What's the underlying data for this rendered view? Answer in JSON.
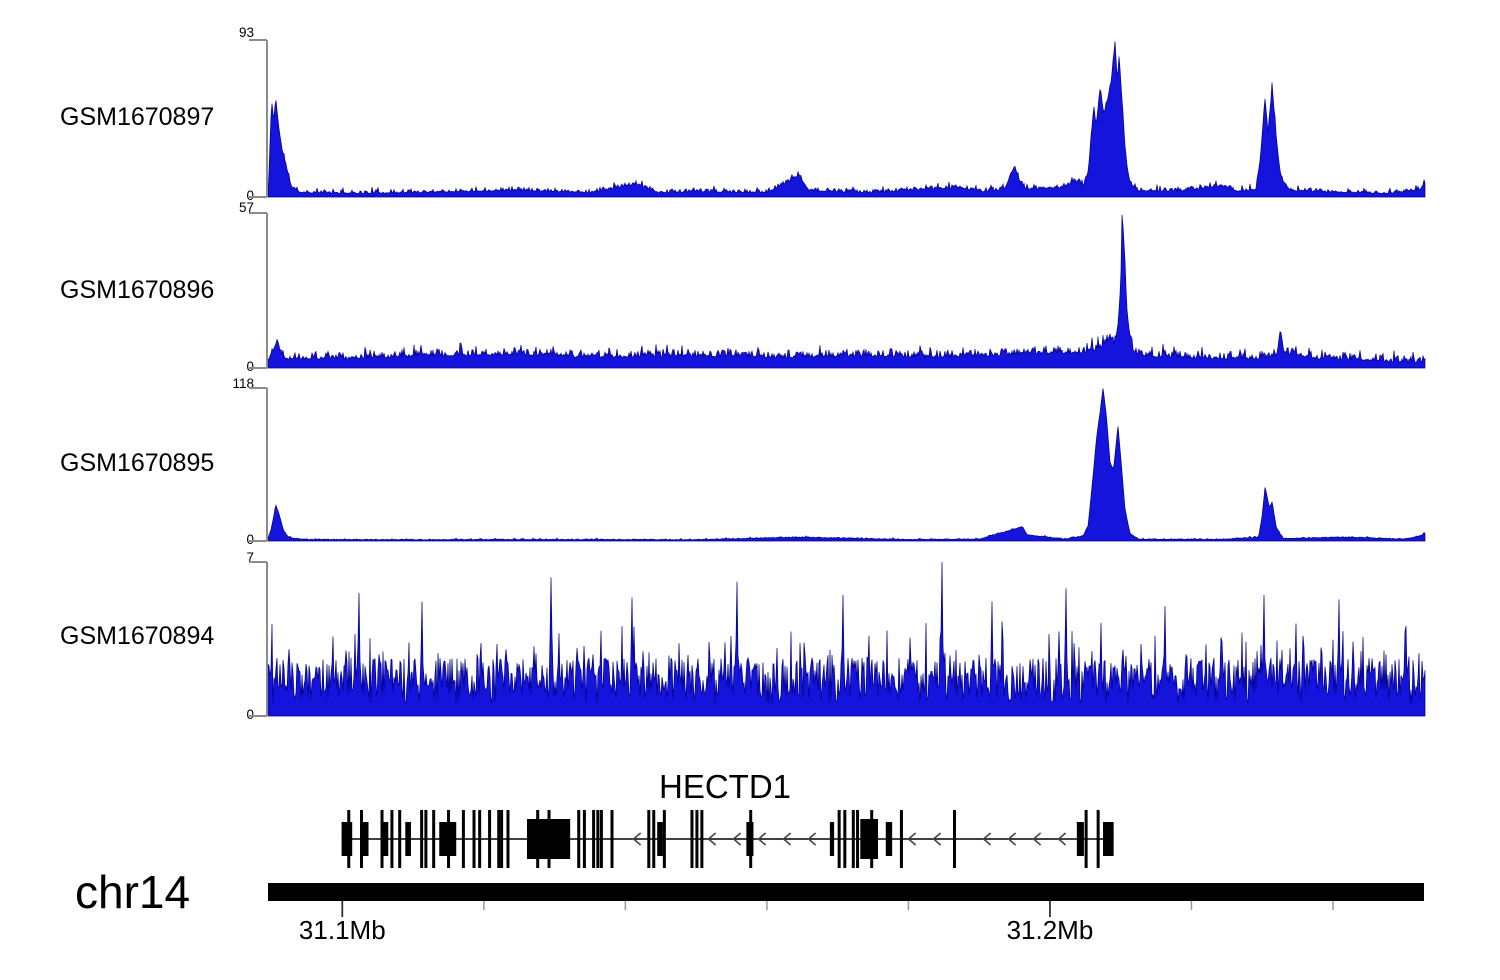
{
  "chart_data": {
    "type": "area",
    "description": "Genome browser coverage tracks over HECTD1 locus",
    "x_axis": {
      "units": "Mb",
      "start_mb": 31.0895,
      "end_mb": 31.253,
      "chromosome": "chr14",
      "ticks_major": [
        {
          "mb": 31.1,
          "label": "31.1Mb"
        },
        {
          "mb": 31.2,
          "label": "31.2Mb"
        }
      ],
      "ticks_minor_mb": [
        31.12,
        31.14,
        31.16,
        31.18,
        31.22,
        31.24
      ]
    },
    "tracks": [
      {
        "label": "GSM1670897",
        "ymax": 93,
        "ymax_label": "93",
        "yzero_label": "0",
        "noise_amp": 2.2,
        "seed": 11,
        "envelope": [
          [
            31.0895,
            2
          ],
          [
            31.0897,
            20
          ],
          [
            31.09,
            58
          ],
          [
            31.0903,
            45
          ],
          [
            31.0906,
            59
          ],
          [
            31.091,
            42
          ],
          [
            31.0914,
            30
          ],
          [
            31.0919,
            22
          ],
          [
            31.0924,
            12
          ],
          [
            31.0929,
            6
          ],
          [
            31.0941,
            3
          ],
          [
            31.1,
            2.5
          ],
          [
            31.11,
            3
          ],
          [
            31.125,
            4.5
          ],
          [
            31.135,
            3
          ],
          [
            31.1415,
            8
          ],
          [
            31.1445,
            3
          ],
          [
            31.15,
            3.5
          ],
          [
            31.16,
            3
          ],
          [
            31.1645,
            13
          ],
          [
            31.1652,
            9
          ],
          [
            31.166,
            4
          ],
          [
            31.175,
            3
          ],
          [
            31.18,
            4.5
          ],
          [
            31.1875,
            6
          ],
          [
            31.19,
            3.5
          ],
          [
            31.1936,
            5
          ],
          [
            31.195,
            19
          ],
          [
            31.1957,
            10
          ],
          [
            31.1966,
            5
          ],
          [
            31.2014,
            6
          ],
          [
            31.2039,
            10
          ],
          [
            31.2047,
            7
          ],
          [
            31.2054,
            15
          ],
          [
            31.2058,
            35
          ],
          [
            31.2062,
            55
          ],
          [
            31.2065,
            42
          ],
          [
            31.2071,
            64
          ],
          [
            31.2076,
            50
          ],
          [
            31.2082,
            58
          ],
          [
            31.2087,
            70
          ],
          [
            31.2092,
            93
          ],
          [
            31.2095,
            70
          ],
          [
            31.2098,
            82
          ],
          [
            31.2103,
            50
          ],
          [
            31.2107,
            25
          ],
          [
            31.2112,
            10
          ],
          [
            31.2122,
            4
          ],
          [
            31.2184,
            4
          ],
          [
            31.2243,
            7
          ],
          [
            31.2268,
            3.5
          ],
          [
            31.2291,
            5
          ],
          [
            31.2297,
            22
          ],
          [
            31.2304,
            59
          ],
          [
            31.2308,
            38
          ],
          [
            31.2314,
            66
          ],
          [
            31.232,
            35
          ],
          [
            31.2326,
            12
          ],
          [
            31.234,
            4
          ],
          [
            31.2424,
            3
          ],
          [
            31.248,
            2.5
          ],
          [
            31.2523,
            5
          ],
          [
            31.253,
            8
          ]
        ]
      },
      {
        "label": "GSM1670896",
        "ymax": 57,
        "ymax_label": "57",
        "yzero_label": "0",
        "noise_amp": 2.8,
        "seed": 22,
        "envelope": [
          [
            31.0895,
            3
          ],
          [
            31.0907,
            10
          ],
          [
            31.0912,
            7
          ],
          [
            31.092,
            4
          ],
          [
            31.1,
            4
          ],
          [
            31.112,
            5
          ],
          [
            31.123,
            5.5
          ],
          [
            31.135,
            4.5
          ],
          [
            31.15,
            5
          ],
          [
            31.162,
            4.5
          ],
          [
            31.175,
            5
          ],
          [
            31.185,
            4.5
          ],
          [
            31.1955,
            5.5
          ],
          [
            31.2005,
            6
          ],
          [
            31.204,
            6
          ],
          [
            31.2062,
            7
          ],
          [
            31.2076,
            9
          ],
          [
            31.2085,
            12
          ],
          [
            31.2091,
            9
          ],
          [
            31.2096,
            16
          ],
          [
            31.21,
            30
          ],
          [
            31.2102,
            57
          ],
          [
            31.2105,
            45
          ],
          [
            31.2108,
            25
          ],
          [
            31.2112,
            12
          ],
          [
            31.2118,
            7
          ],
          [
            31.2125,
            5
          ],
          [
            31.218,
            4.5
          ],
          [
            31.224,
            4
          ],
          [
            31.2295,
            4
          ],
          [
            31.232,
            5
          ],
          [
            31.2326,
            14
          ],
          [
            31.2331,
            6
          ],
          [
            31.238,
            4
          ],
          [
            31.245,
            3.5
          ],
          [
            31.251,
            2.5
          ],
          [
            31.253,
            3
          ]
        ]
      },
      {
        "label": "GSM1670895",
        "ymax": 118,
        "ymax_label": "118",
        "yzero_label": "0",
        "noise_amp": 0.7,
        "seed": 33,
        "envelope": [
          [
            31.0895,
            2
          ],
          [
            31.09,
            10
          ],
          [
            31.0906,
            28
          ],
          [
            31.0911,
            20
          ],
          [
            31.0917,
            8
          ],
          [
            31.0924,
            3
          ],
          [
            31.0941,
            1.2
          ],
          [
            31.11,
            1
          ],
          [
            31.13,
            1.2
          ],
          [
            31.15,
            1
          ],
          [
            31.1647,
            3
          ],
          [
            31.18,
            1.2
          ],
          [
            31.19,
            1.5
          ],
          [
            31.1961,
            11
          ],
          [
            31.1967,
            5
          ],
          [
            31.202,
            1.5
          ],
          [
            31.2047,
            4
          ],
          [
            31.2054,
            12
          ],
          [
            31.206,
            45
          ],
          [
            31.2066,
            80
          ],
          [
            31.2071,
            100
          ],
          [
            31.2075,
            118
          ],
          [
            31.208,
            95
          ],
          [
            31.2085,
            60
          ],
          [
            31.209,
            55
          ],
          [
            31.2096,
            89
          ],
          [
            31.21,
            65
          ],
          [
            31.2106,
            25
          ],
          [
            31.2113,
            6
          ],
          [
            31.2125,
            1.5
          ],
          [
            31.224,
            1.2
          ],
          [
            31.2295,
            3
          ],
          [
            31.23,
            20
          ],
          [
            31.2304,
            42
          ],
          [
            31.231,
            26
          ],
          [
            31.2314,
            30
          ],
          [
            31.232,
            10
          ],
          [
            31.233,
            2
          ],
          [
            31.2424,
            3
          ],
          [
            31.25,
            1.5
          ],
          [
            31.2523,
            4
          ],
          [
            31.253,
            6
          ]
        ]
      },
      {
        "label": "GSM1670894",
        "ymax": 7,
        "ymax_label": "7",
        "yzero_label": "0",
        "noise_base": 0.55,
        "noise_amp": 2.1,
        "seed": 44,
        "envelope": [
          [
            31.0895,
            0
          ],
          [
            31.253,
            0
          ]
        ],
        "spikes": [
          [
            31.1024,
            5.6
          ],
          [
            31.1112,
            5.2
          ],
          [
            31.1295,
            6.3
          ],
          [
            31.141,
            5.4
          ],
          [
            31.1558,
            6.1
          ],
          [
            31.1707,
            5.5
          ],
          [
            31.1847,
            7.0
          ],
          [
            31.1918,
            5.2
          ],
          [
            31.2022,
            5.8
          ],
          [
            31.2162,
            5.0
          ],
          [
            31.2302,
            5.5
          ],
          [
            31.2408,
            5.3
          ]
        ]
      }
    ],
    "gene_track": {
      "gene_name": "HECTD1",
      "strand": "left",
      "start_mb": 31.0999,
      "end_mb": 31.209,
      "exons": [
        [
          31.0999,
          31.1014,
          "m"
        ],
        [
          31.1007,
          31.101,
          "t"
        ],
        [
          31.1025,
          31.1028,
          "t"
        ],
        [
          31.1028,
          31.1037,
          "m"
        ],
        [
          31.1054,
          31.1057,
          "t"
        ],
        [
          31.1058,
          31.1065,
          "m"
        ],
        [
          31.1068,
          31.1071,
          "t"
        ],
        [
          31.1079,
          31.1082,
          "t"
        ],
        [
          31.1089,
          31.1097,
          "m"
        ],
        [
          31.111,
          31.1113,
          "t"
        ],
        [
          31.1116,
          31.1119,
          "t"
        ],
        [
          31.1127,
          31.113,
          "t"
        ],
        [
          31.1137,
          31.1161,
          "m"
        ],
        [
          31.1148,
          31.1151,
          "t"
        ],
        [
          31.1169,
          31.1172,
          "t"
        ],
        [
          31.1184,
          31.1187,
          "t"
        ],
        [
          31.1192,
          31.1195,
          "t"
        ],
        [
          31.1206,
          31.1209,
          "t"
        ],
        [
          31.1219,
          31.1222,
          "t"
        ],
        [
          31.1223,
          31.1226,
          "t"
        ],
        [
          31.1232,
          31.1235,
          "t"
        ],
        [
          31.1261,
          31.1322,
          "L"
        ],
        [
          31.1274,
          31.1277,
          "t"
        ],
        [
          31.129,
          31.1293,
          "t"
        ],
        [
          31.1332,
          31.1335,
          "t"
        ],
        [
          31.134,
          31.1343,
          "t"
        ],
        [
          31.1353,
          31.1356,
          "t"
        ],
        [
          31.1359,
          31.1362,
          "t"
        ],
        [
          31.1364,
          31.1367,
          "t"
        ],
        [
          31.1379,
          31.1382,
          "t"
        ],
        [
          31.1431,
          31.1434,
          "t"
        ],
        [
          31.1438,
          31.1441,
          "t"
        ],
        [
          31.1445,
          31.1453,
          "m"
        ],
        [
          31.1453,
          31.1456,
          "t"
        ],
        [
          31.1492,
          31.1495,
          "t"
        ],
        [
          31.1499,
          31.1502,
          "t"
        ],
        [
          31.1506,
          31.1509,
          "t"
        ],
        [
          31.1571,
          31.1581,
          "m"
        ],
        [
          31.1575,
          31.1578,
          "t"
        ],
        [
          31.1689,
          31.1695,
          "m"
        ],
        [
          31.17,
          31.1703,
          "t"
        ],
        [
          31.1708,
          31.1711,
          "t"
        ],
        [
          31.172,
          31.1723,
          "t"
        ],
        [
          31.1726,
          31.1729,
          "t"
        ],
        [
          31.1732,
          31.1757,
          "L"
        ],
        [
          31.1746,
          31.1749,
          "t"
        ],
        [
          31.1768,
          31.1777,
          "m"
        ],
        [
          31.1788,
          31.1791,
          "t"
        ],
        [
          31.1863,
          31.1866,
          "t"
        ],
        [
          31.2038,
          31.2048,
          "m"
        ],
        [
          31.2049,
          31.2052,
          "t"
        ],
        [
          31.2066,
          31.2069,
          "t"
        ],
        [
          31.2075,
          31.209,
          "m"
        ]
      ]
    },
    "chromosome": {
      "label": "chr14"
    },
    "colors": {
      "signal_fill": "#1414dd",
      "signal_stroke": "#000086",
      "axis_gray": "#8c8c8c",
      "gene_black": "#000000",
      "arrow_gray": "#444444",
      "minor_tick_gray": "#999999"
    },
    "legend": "none",
    "grid": false
  }
}
